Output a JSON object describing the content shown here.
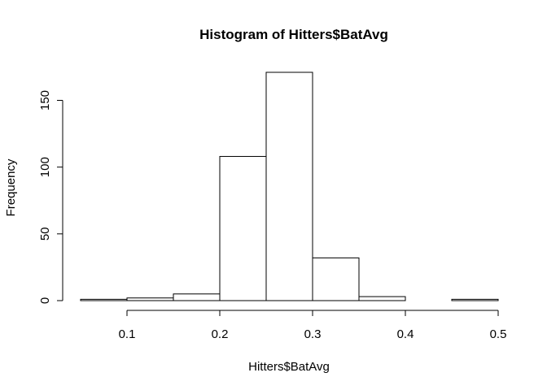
{
  "chart_data": {
    "type": "bar",
    "title": "Histogram of Hitters$BatAvg",
    "xlabel": "Hitters$BatAvg",
    "ylabel": "Frequency",
    "bins": [
      {
        "x0": 0.05,
        "x1": 0.1,
        "count": 1
      },
      {
        "x0": 0.1,
        "x1": 0.15,
        "count": 2
      },
      {
        "x0": 0.15,
        "x1": 0.2,
        "count": 5
      },
      {
        "x0": 0.2,
        "x1": 0.25,
        "count": 108
      },
      {
        "x0": 0.25,
        "x1": 0.3,
        "count": 171
      },
      {
        "x0": 0.3,
        "x1": 0.35,
        "count": 32
      },
      {
        "x0": 0.35,
        "x1": 0.4,
        "count": 3
      },
      {
        "x0": 0.4,
        "x1": 0.45,
        "count": 0
      },
      {
        "x0": 0.45,
        "x1": 0.5,
        "count": 1
      }
    ],
    "x_ticks": [
      0.1,
      0.2,
      0.3,
      0.4,
      0.5
    ],
    "x_tick_labels": [
      "0.1",
      "0.2",
      "0.3",
      "0.4",
      "0.5"
    ],
    "y_ticks": [
      0,
      50,
      100,
      150
    ],
    "y_tick_labels": [
      "0",
      "50",
      "100",
      "150"
    ],
    "xlim": [
      0.05,
      0.5
    ],
    "ylim": [
      0,
      171
    ],
    "grid": false
  }
}
